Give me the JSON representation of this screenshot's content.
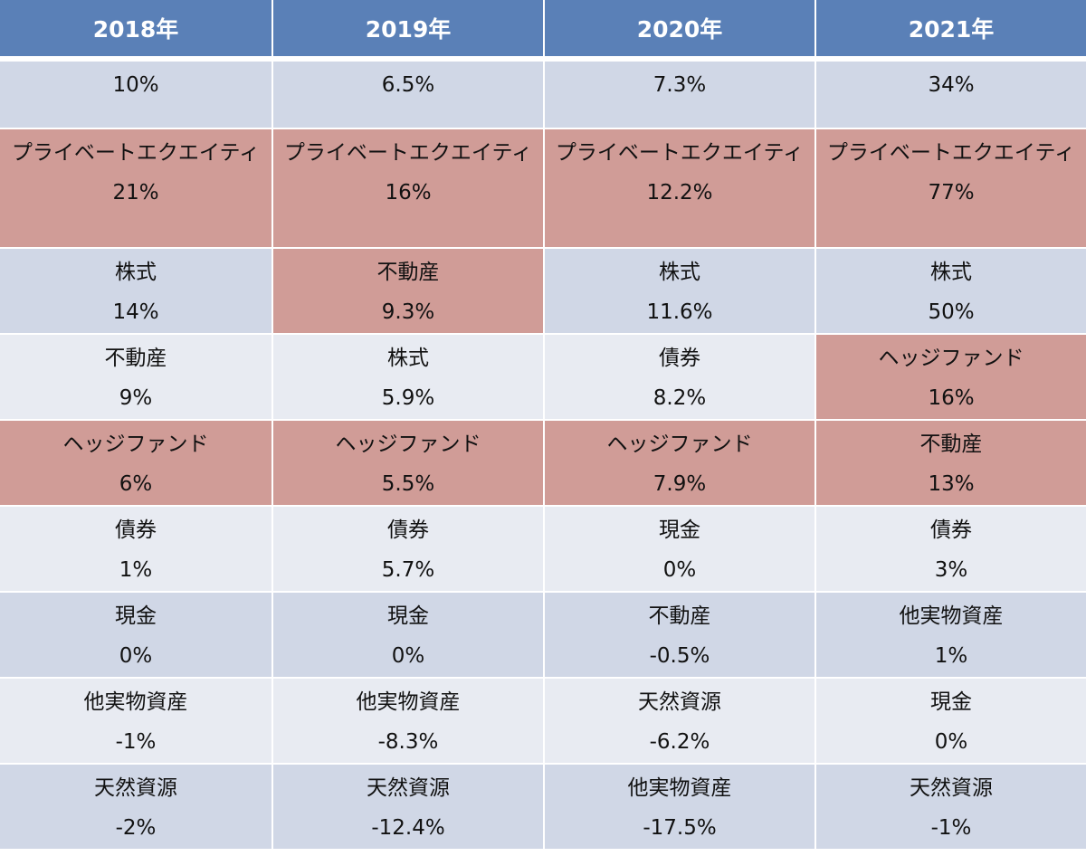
{
  "table": {
    "headers": [
      "2018年",
      "2019年",
      "2020年",
      "2021年"
    ],
    "rows": [
      [
        {
          "asset": "",
          "value": "10%"
        },
        {
          "asset": "",
          "value": "6.5%"
        },
        {
          "asset": "",
          "value": "7.3%"
        },
        {
          "asset": "",
          "value": "34%"
        }
      ],
      [
        {
          "asset": "プライベートエクエイティ",
          "value": "21%"
        },
        {
          "asset": "プライベートエクエイティ",
          "value": "16%"
        },
        {
          "asset": "プライベートエクエイティ",
          "value": "12.2%"
        },
        {
          "asset": "プライベートエクエイティ",
          "value": "77%"
        }
      ],
      [
        {
          "asset": "株式",
          "value": "14%"
        },
        {
          "asset": "不動産",
          "value": "9.3%"
        },
        {
          "asset": "株式",
          "value": "11.6%"
        },
        {
          "asset": "株式",
          "value": "50%"
        }
      ],
      [
        {
          "asset": "不動産",
          "value": "9%"
        },
        {
          "asset": "株式",
          "value": "5.9%"
        },
        {
          "asset": "債券",
          "value": "8.2%"
        },
        {
          "asset": "ヘッジファンド",
          "value": "16%"
        }
      ],
      [
        {
          "asset": "ヘッジファンド",
          "value": "6%"
        },
        {
          "asset": "ヘッジファンド",
          "value": "5.5%"
        },
        {
          "asset": "ヘッジファンド",
          "value": "7.9%"
        },
        {
          "asset": "不動産",
          "value": "13%"
        }
      ],
      [
        {
          "asset": "債券",
          "value": "1%"
        },
        {
          "asset": "債券",
          "value": "5.7%"
        },
        {
          "asset": "現金",
          "value": "0%"
        },
        {
          "asset": "債券",
          "value": "3%"
        }
      ],
      [
        {
          "asset": "現金",
          "value": "0%"
        },
        {
          "asset": "現金",
          "value": "0%"
        },
        {
          "asset": "不動産",
          "value": "-0.5%"
        },
        {
          "asset": "他実物資産",
          "value": "1%"
        }
      ],
      [
        {
          "asset": "他実物資産",
          "value": "-1%"
        },
        {
          "asset": "他実物資産",
          "value": "-8.3%"
        },
        {
          "asset": "天然資源",
          "value": "-6.2%"
        },
        {
          "asset": "現金",
          "value": "0%"
        }
      ],
      [
        {
          "asset": "天然資源",
          "value": "-2%"
        },
        {
          "asset": "天然資源",
          "value": "-12.4%"
        },
        {
          "asset": "他実物資産",
          "value": "-17.5%"
        },
        {
          "asset": "天然資源",
          "value": "-1%"
        }
      ]
    ]
  },
  "colors": {
    "header_bg": "#5a80b7",
    "row_dark_bg": "#d0d7e6",
    "row_light_bg": "#e8ebf2",
    "highlight_bg": "#d09c97"
  }
}
